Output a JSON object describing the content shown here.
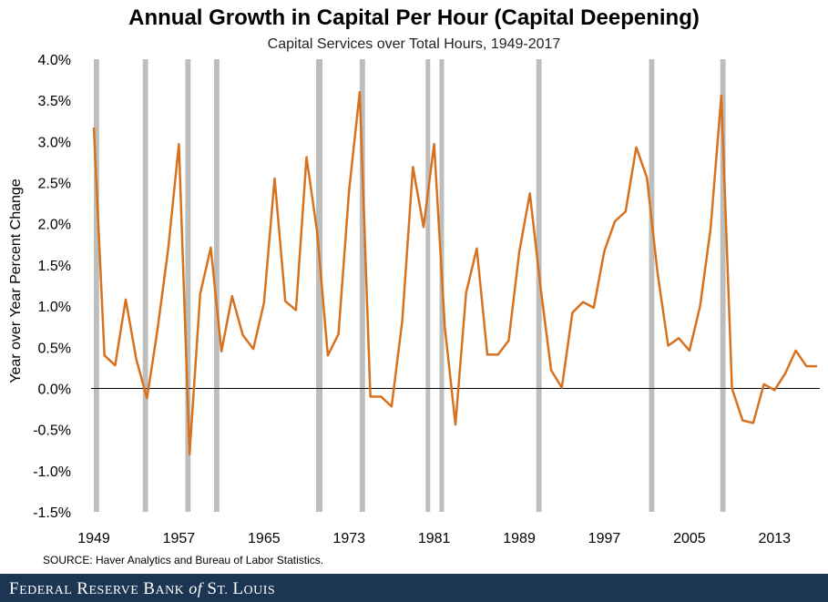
{
  "chart_data": {
    "type": "line",
    "title": "Annual Growth in Capital Per Hour (Capital Deepening)",
    "subtitle": "Capital Services over Total Hours, 1949-2017",
    "ylabel": "Year over Year Percent Change",
    "xlabel": "",
    "xlim": [
      1949,
      2017
    ],
    "ylim": [
      -1.5,
      4.0
    ],
    "y_ticks": [
      "4.0%",
      "3.5%",
      "3.0%",
      "2.5%",
      "2.0%",
      "1.5%",
      "1.0%",
      "0.5%",
      "0.0%",
      "-0.5%",
      "-1.0%",
      "-1.5%"
    ],
    "y_tick_values": [
      4.0,
      3.5,
      3.0,
      2.5,
      2.0,
      1.5,
      1.0,
      0.5,
      0.0,
      -0.5,
      -1.0,
      -1.5
    ],
    "x_ticks": [
      "1949",
      "1957",
      "1965",
      "1973",
      "1981",
      "1989",
      "1997",
      "2005",
      "2013"
    ],
    "x_tick_values": [
      1949,
      1957,
      1965,
      1973,
      1981,
      1989,
      1997,
      2005,
      2013
    ],
    "grid": false,
    "legend": "none",
    "recession_bars": [
      {
        "start": 1949.0,
        "end": 1949.5
      },
      {
        "start": 1953.6,
        "end": 1954.1
      },
      {
        "start": 1957.6,
        "end": 1958.1
      },
      {
        "start": 1960.3,
        "end": 1960.8
      },
      {
        "start": 1969.9,
        "end": 1970.5
      },
      {
        "start": 1974.0,
        "end": 1974.5
      },
      {
        "start": 1980.2,
        "end": 1980.6
      },
      {
        "start": 1981.5,
        "end": 1981.9
      },
      {
        "start": 1990.6,
        "end": 1991.1
      },
      {
        "start": 2001.2,
        "end": 2001.7
      },
      {
        "start": 2007.9,
        "end": 2008.4
      }
    ],
    "series": [
      {
        "x": [
          1949,
          1950,
          1951,
          1952,
          1953,
          1954,
          1955,
          1956,
          1957,
          1958,
          1959,
          1960,
          1961,
          1962,
          1963,
          1964,
          1965,
          1966,
          1967,
          1968,
          1969,
          1970,
          1971,
          1972,
          1973,
          1974,
          1975,
          1976,
          1977,
          1978,
          1979,
          1980,
          1981,
          1982,
          1983,
          1984,
          1985,
          1986,
          1987,
          1988,
          1989,
          1990,
          1991,
          1992,
          1993,
          1994,
          1995,
          1996,
          1997,
          1998,
          1999,
          2000,
          2001,
          2002,
          2003,
          2004,
          2005,
          2006,
          2007,
          2008,
          2009,
          2010,
          2011,
          2012,
          2013,
          2014,
          2015,
          2016,
          2017
        ],
        "values": [
          3.17,
          0.4,
          0.28,
          1.08,
          0.35,
          -0.12,
          0.73,
          1.7,
          2.97,
          -0.8,
          1.15,
          1.71,
          0.45,
          1.12,
          0.65,
          0.48,
          1.04,
          2.55,
          1.06,
          0.95,
          2.81,
          1.9,
          0.4,
          0.66,
          2.4,
          3.6,
          -0.1,
          -0.1,
          -0.22,
          0.82,
          2.69,
          1.96,
          2.97,
          0.75,
          -0.44,
          1.16,
          1.7,
          0.41,
          0.41,
          0.58,
          1.66,
          2.37,
          1.23,
          0.22,
          0.01,
          0.92,
          1.05,
          0.98,
          1.67,
          2.03,
          2.15,
          2.93,
          2.56,
          1.4,
          0.52,
          0.61,
          0.46,
          1.0,
          1.95,
          3.56,
          0.0,
          -0.39,
          -0.42,
          0.05,
          -0.02,
          0.18,
          0.46,
          0.27,
          0.27
        ],
        "color": "#d8711e"
      }
    ]
  },
  "source": "SOURCE: Haver Analytics and Bureau of Labor Statistics.",
  "footer": "Federal Reserve Bank of St. Louis"
}
